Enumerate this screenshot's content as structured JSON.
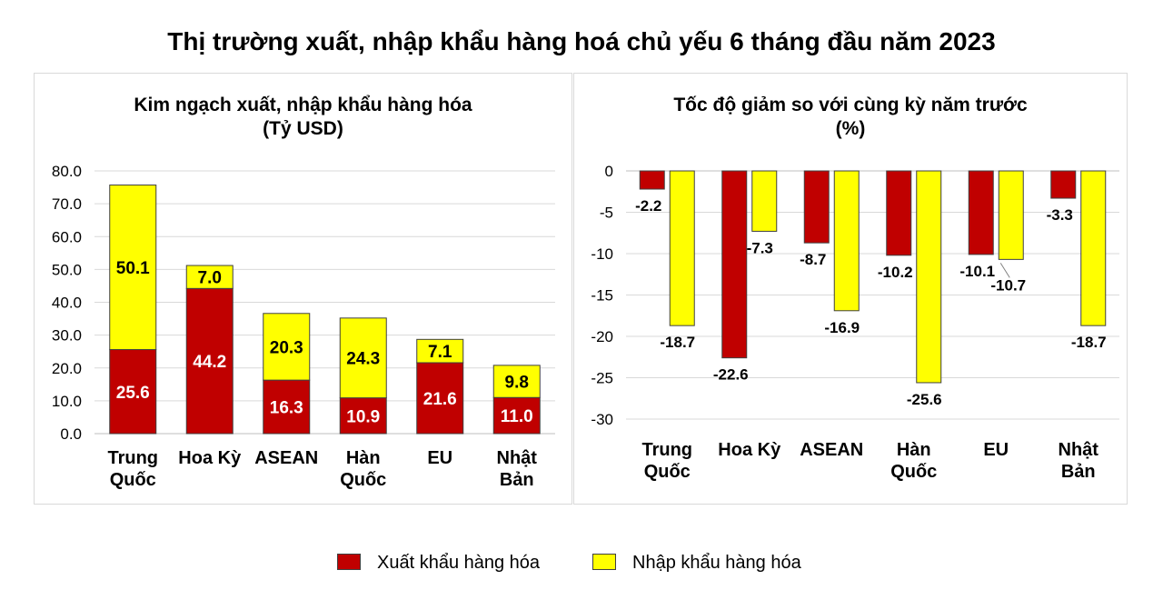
{
  "title": "Thị trường xuất, nhập khẩu hàng hoá chủ yếu 6 tháng đầu năm 2023",
  "colors": {
    "export": "#c00000",
    "import": "#ffff00"
  },
  "legend": {
    "export_label": "Xuất khẩu hàng hóa",
    "import_label": "Nhập khẩu hàng hóa"
  },
  "chart_data": [
    {
      "type": "bar",
      "stacked": true,
      "title": "Kim ngạch xuất, nhập khẩu hàng hóa",
      "subtitle": "(Tỷ USD)",
      "categories": [
        [
          "Trung",
          "Quốc"
        ],
        [
          "Hoa Kỳ"
        ],
        [
          "ASEAN"
        ],
        [
          "Hàn",
          "Quốc"
        ],
        [
          "EU"
        ],
        [
          "Nhật",
          "Bản"
        ]
      ],
      "series": [
        {
          "name": "Xuất khẩu hàng hóa",
          "values": [
            25.6,
            44.2,
            16.3,
            10.9,
            21.6,
            11.0
          ]
        },
        {
          "name": "Nhập khẩu hàng hóa",
          "values": [
            50.1,
            7.0,
            20.3,
            24.3,
            7.1,
            9.8
          ]
        }
      ],
      "ylim": [
        0,
        80
      ],
      "yticks": [
        "0.0",
        "10.0",
        "20.0",
        "30.0",
        "40.0",
        "50.0",
        "60.0",
        "70.0",
        "80.0"
      ],
      "grid": true
    },
    {
      "type": "bar",
      "stacked": false,
      "title": "Tốc độ giảm so với cùng kỳ năm trước",
      "subtitle": "(%)",
      "categories": [
        [
          "Trung",
          "Quốc"
        ],
        [
          "Hoa Kỳ"
        ],
        [
          "ASEAN"
        ],
        [
          "Hàn",
          "Quốc"
        ],
        [
          "EU"
        ],
        [
          "Nhật",
          "Bản"
        ]
      ],
      "series": [
        {
          "name": "Xuất khẩu hàng hóa",
          "values": [
            -2.2,
            -22.6,
            -8.7,
            -10.2,
            -10.1,
            -3.3
          ]
        },
        {
          "name": "Nhập khẩu hàng hóa",
          "values": [
            -18.7,
            -7.3,
            -16.9,
            -25.6,
            -10.7,
            -18.7
          ]
        }
      ],
      "ylim": [
        -30,
        0
      ],
      "yticks": [
        "0",
        "-5",
        "-10",
        "-15",
        "-20",
        "-25",
        "-30"
      ],
      "grid": true
    }
  ]
}
